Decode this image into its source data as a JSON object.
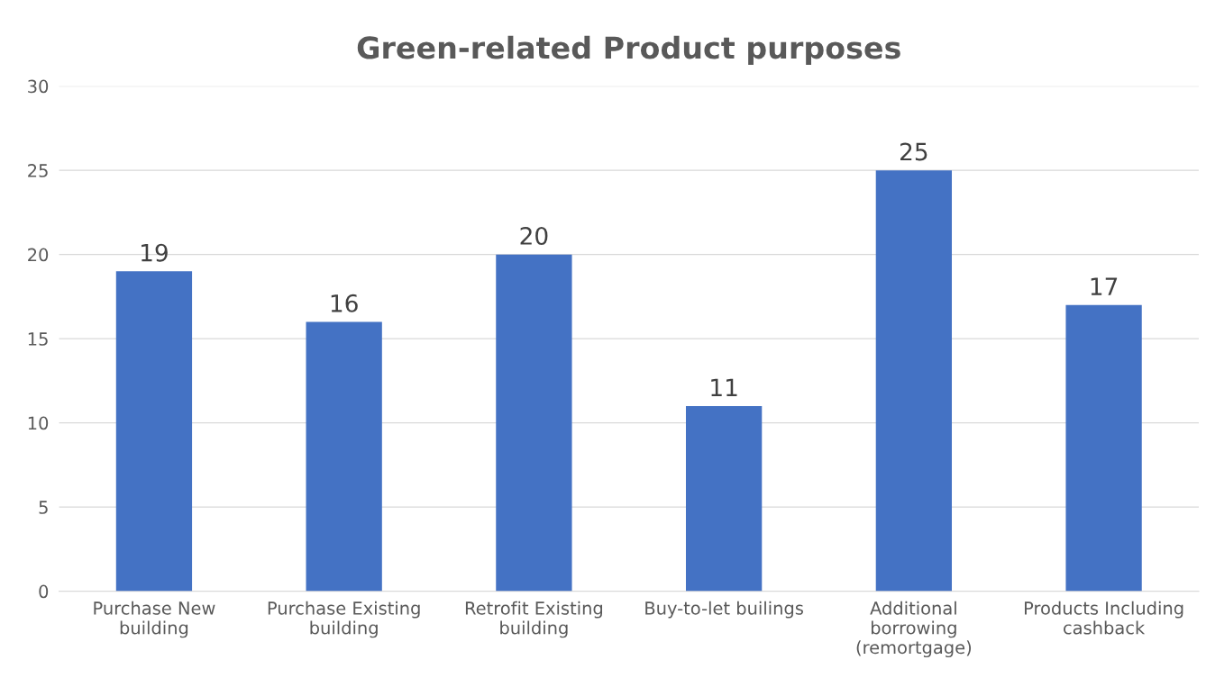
{
  "chart_data": {
    "type": "bar",
    "title": "Green-related Product purposes",
    "categories": [
      "Purchase New\nbuilding",
      "Purchase Existing\nbuilding",
      "Retrofit Existing\nbuilding",
      "Buy-to-let builings",
      "Additional\nborrowing\n(remortgage)",
      "Products Including\ncashback"
    ],
    "values": [
      19,
      16,
      20,
      11,
      25,
      17
    ],
    "color": "#4472c4",
    "ylim": [
      0,
      30
    ],
    "yticks": [
      0,
      5,
      10,
      15,
      20,
      25,
      30
    ],
    "grid": "y",
    "data_labels": true
  }
}
